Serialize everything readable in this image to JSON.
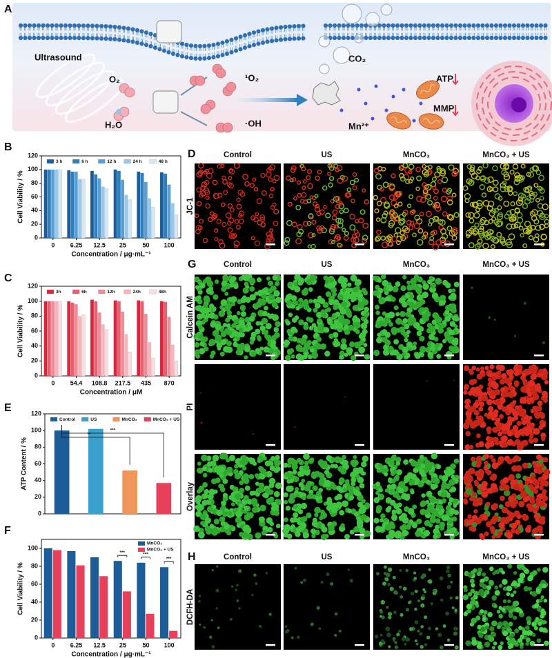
{
  "panel_labels": [
    "A",
    "B",
    "C",
    "D",
    "E",
    "F",
    "G",
    "H"
  ],
  "schematic": {
    "labels": [
      "Ultrasound",
      "O₂",
      "H₂O",
      "¹O₂",
      "·OH",
      "CO₂",
      "Mn²⁺",
      "ATP",
      "MMP"
    ]
  },
  "chart_data": [
    {
      "type": "bar",
      "x_label": "Concentration / μg·mL⁻¹",
      "y_label": "Cell Viability / %",
      "categories": [
        "0",
        "6.25",
        "12.5",
        "25",
        "50",
        "100"
      ],
      "series": [
        {
          "name": "3 h",
          "color": "#1c5d99",
          "values": [
            100,
            99,
            98,
            100,
            97,
            96
          ]
        },
        {
          "name": "6 h",
          "color": "#2f7fbf",
          "values": [
            100,
            97,
            93,
            98,
            95,
            94
          ]
        },
        {
          "name": "12 h",
          "color": "#5a9fd4",
          "values": [
            100,
            97,
            87,
            85,
            82,
            78
          ]
        },
        {
          "name": "24 h",
          "color": "#9cc7e8",
          "values": [
            100,
            86,
            75,
            63,
            58,
            51
          ]
        },
        {
          "name": "48 h",
          "color": "#d4e8f6",
          "values": [
            100,
            86,
            72,
            56,
            45,
            34
          ]
        }
      ],
      "ylim": [
        0,
        120
      ],
      "yticks": [
        0,
        20,
        40,
        60,
        80,
        100,
        120
      ],
      "legend": "top"
    },
    {
      "type": "bar",
      "x_label": "Concentration / μM",
      "y_label": "Cell Viability / %",
      "categories": [
        "0",
        "54.4",
        "108.8",
        "217.5",
        "435",
        "870"
      ],
      "series": [
        {
          "name": "3h",
          "color": "#d9263d",
          "values": [
            100,
            100,
            102,
            101,
            101,
            100
          ]
        },
        {
          "name": "6h",
          "color": "#e8606f",
          "values": [
            100,
            98,
            100,
            100,
            100,
            99
          ]
        },
        {
          "name": "12h",
          "color": "#f08c96",
          "values": [
            100,
            96,
            85,
            86,
            83,
            79
          ]
        },
        {
          "name": "24h",
          "color": "#f5b5bc",
          "values": [
            100,
            80,
            69,
            56,
            45,
            42
          ]
        },
        {
          "name": "48h",
          "color": "#fbdde0",
          "values": [
            100,
            82,
            62,
            32,
            24,
            20
          ]
        }
      ],
      "ylim": [
        0,
        120
      ],
      "yticks": [
        0,
        20,
        40,
        60,
        80,
        100,
        120
      ],
      "legend": "top"
    },
    {
      "type": "bar",
      "y_label": "ATP Content / %",
      "series": [
        {
          "name": "Control",
          "color": "#1c5d99",
          "values": [
            100
          ]
        },
        {
          "name": "US",
          "color": "#3aa0cf",
          "values": [
            102
          ]
        },
        {
          "name": "MnCO₃",
          "color": "#f0965a",
          "values": [
            52
          ]
        },
        {
          "name": "MnCO₃ + US",
          "color": "#e8405a",
          "values": [
            37
          ]
        }
      ],
      "ylim": [
        0,
        120
      ],
      "yticks": [
        0,
        20,
        40,
        60,
        80,
        100,
        120
      ],
      "legend": "top",
      "annotations": [
        "**",
        "***"
      ]
    },
    {
      "type": "bar",
      "x_label": "Concentration / μg·mL⁻¹",
      "y_label": "Cell Viability / %",
      "categories": [
        "0",
        "6.25",
        "12.5",
        "25",
        "50",
        "100"
      ],
      "series": [
        {
          "name": "MnCO₃",
          "color": "#1c5d99",
          "values": [
            100,
            97,
            90,
            86,
            84,
            79
          ]
        },
        {
          "name": "MnCO₃ + US",
          "color": "#e8405a",
          "values": [
            98,
            81,
            69,
            52,
            27,
            8
          ]
        }
      ],
      "ylim": [
        0,
        110
      ],
      "yticks": [
        0,
        20,
        40,
        60,
        80,
        100
      ],
      "legend": "top-right",
      "annotations": [
        "***",
        "***",
        "***"
      ]
    }
  ],
  "images": {
    "D": {
      "columns": [
        "Control",
        "US",
        "MnCO₃",
        "MnCO₃ + US"
      ],
      "rows": [
        "JC-1"
      ]
    },
    "G": {
      "columns": [
        "Control",
        "US",
        "MnCO₃",
        "MnCO₃ + US"
      ],
      "rows": [
        "Calcein AM",
        "PI",
        "Overlay"
      ]
    },
    "H": {
      "columns": [
        "Control",
        "US",
        "MnCO₃",
        "MnCO₃ + US"
      ],
      "rows": [
        "DCFH-DA"
      ]
    }
  }
}
